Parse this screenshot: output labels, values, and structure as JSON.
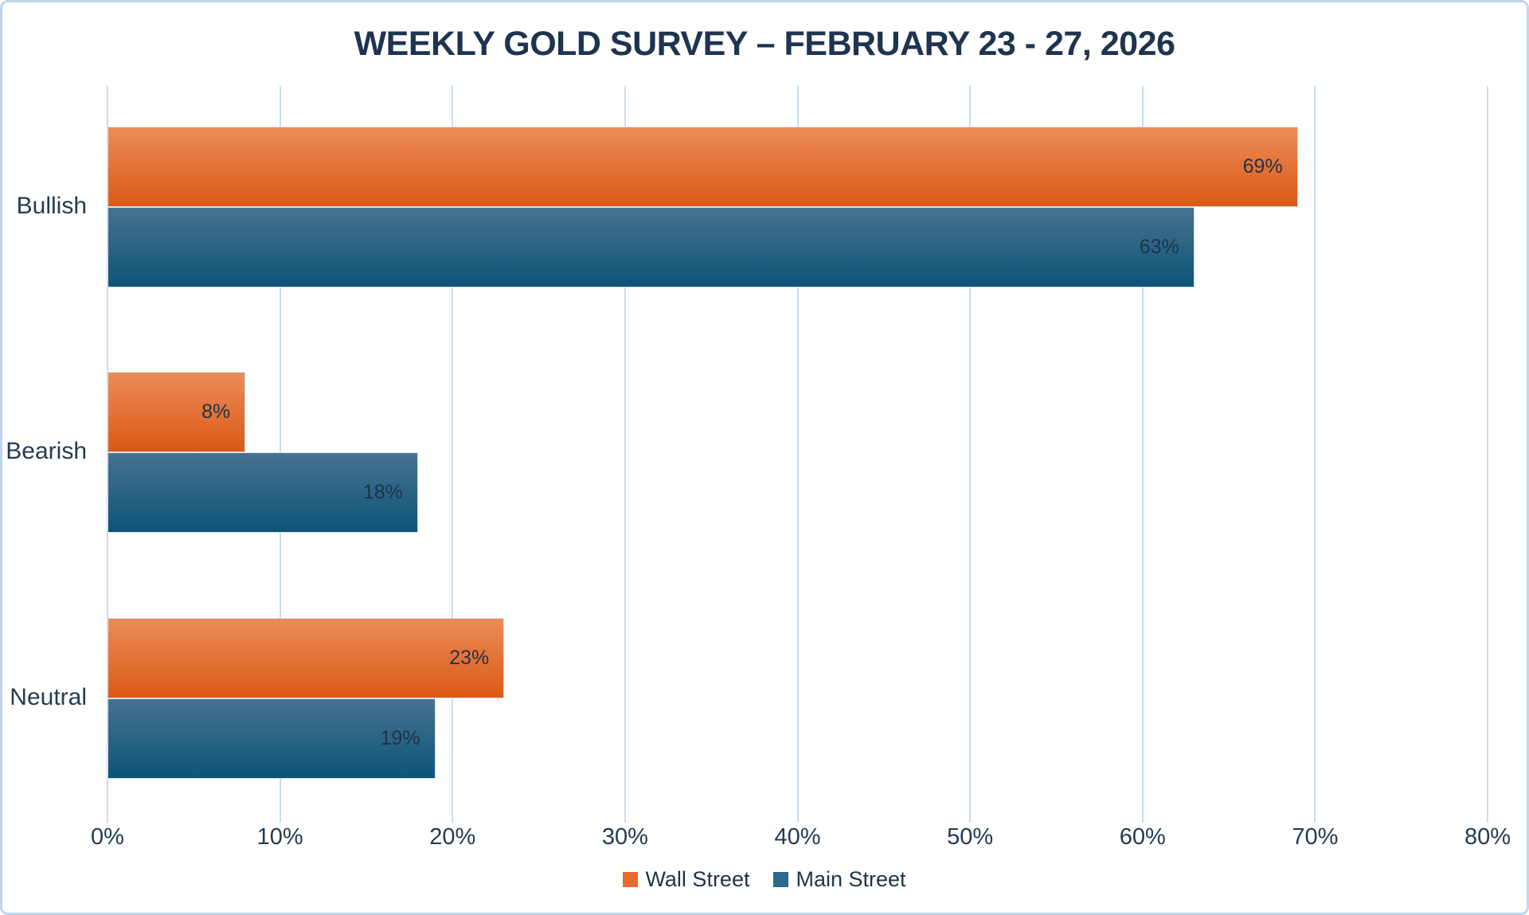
{
  "chart_data": {
    "type": "bar",
    "orientation": "horizontal",
    "title": "WEEKLY GOLD SURVEY – FEBRUARY 23 - 27, 2026",
    "categories": [
      "Bullish",
      "Bearish",
      "Neutral"
    ],
    "series": [
      {
        "name": "Wall Street",
        "values": [
          69,
          8,
          23
        ]
      },
      {
        "name": "Main Street",
        "values": [
          63,
          18,
          19
        ]
      }
    ],
    "data_labels": [
      [
        "69%",
        "8%",
        "23%"
      ],
      [
        "63%",
        "18%",
        "19%"
      ]
    ],
    "x_ticks": [
      "0%",
      "10%",
      "20%",
      "30%",
      "40%",
      "50%",
      "60%",
      "70%",
      "80%"
    ],
    "x_tick_values": [
      0,
      10,
      20,
      30,
      40,
      50,
      60,
      70,
      80
    ],
    "xlim": [
      0,
      80
    ],
    "grid": true,
    "legend_position": "bottom"
  },
  "colors": {
    "background": "#FFFFFF",
    "frame_border": "#BFD6EE",
    "gridline": "#C9DDF2",
    "title_text": "#1E3450",
    "axis_text": "#243B53",
    "data_label_text": "#1F3347",
    "wall_street_gradient_top": "#EC8B58",
    "wall_street_gradient_bottom": "#DB5A15",
    "wall_street_legend": "#E96A2E",
    "main_street_gradient_top": "#477290",
    "main_street_gradient_bottom": "#0D5478",
    "main_street_legend": "#2B698E"
  }
}
